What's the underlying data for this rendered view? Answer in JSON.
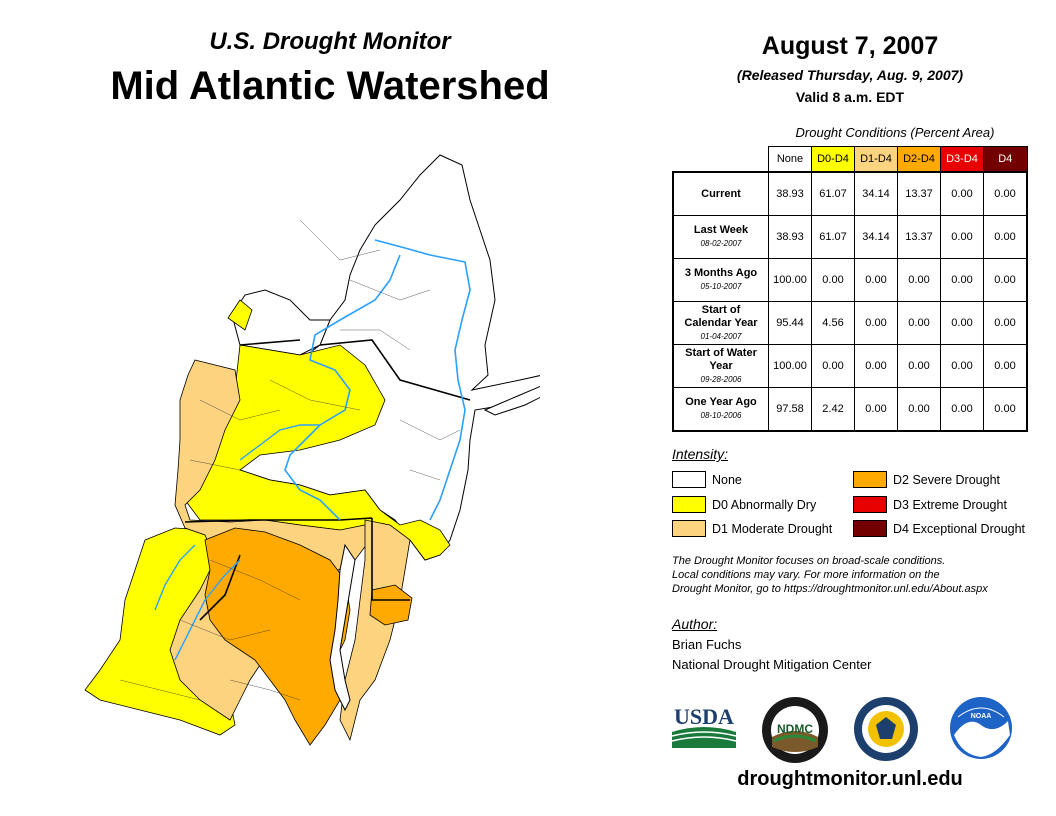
{
  "header": {
    "subtitle": "U.S. Drought Monitor",
    "title": "Mid Atlantic Watershed",
    "date": "August 7, 2007",
    "released": "(Released Thursday, Aug. 9, 2007)",
    "valid": "Valid 8 a.m. EDT"
  },
  "table": {
    "caption": "Drought Conditions (Percent Area)",
    "columns": [
      {
        "label": "None",
        "color": "#ffffff",
        "text_color": "#000000"
      },
      {
        "label": "D0-D4",
        "color": "#ffff00",
        "text_color": "#000000"
      },
      {
        "label": "D1-D4",
        "color": "#fcd37f",
        "text_color": "#000000"
      },
      {
        "label": "D2-D4",
        "color": "#ffaa00",
        "text_color": "#000000"
      },
      {
        "label": "D3-D4",
        "color": "#e60000",
        "text_color": "#ffffff"
      },
      {
        "label": "D4",
        "color": "#730000",
        "text_color": "#ffffff"
      }
    ],
    "rows": [
      {
        "label": "Current",
        "date": "",
        "values": [
          "38.93",
          "61.07",
          "34.14",
          "13.37",
          "0.00",
          "0.00"
        ]
      },
      {
        "label": "Last Week",
        "date": "08-02-2007",
        "values": [
          "38.93",
          "61.07",
          "34.14",
          "13.37",
          "0.00",
          "0.00"
        ]
      },
      {
        "label": "3 Months Ago",
        "date": "05-10-2007",
        "values": [
          "100.00",
          "0.00",
          "0.00",
          "0.00",
          "0.00",
          "0.00"
        ]
      },
      {
        "label": "Start of Calendar Year",
        "date": "01-04-2007",
        "values": [
          "95.44",
          "4.56",
          "0.00",
          "0.00",
          "0.00",
          "0.00"
        ]
      },
      {
        "label": "Start of Water Year",
        "date": "09-28-2006",
        "values": [
          "100.00",
          "0.00",
          "0.00",
          "0.00",
          "0.00",
          "0.00"
        ]
      },
      {
        "label": "One Year Ago",
        "date": "08-10-2006",
        "values": [
          "97.58",
          "2.42",
          "0.00",
          "0.00",
          "0.00",
          "0.00"
        ]
      }
    ]
  },
  "legend": {
    "title": "Intensity:",
    "items": [
      {
        "label": "None",
        "color": "#ffffff"
      },
      {
        "label": "D0 Abnormally Dry",
        "color": "#ffff00"
      },
      {
        "label": "D1 Moderate Drought",
        "color": "#fcd37f"
      },
      {
        "label": "D2 Severe Drought",
        "color": "#ffaa00"
      },
      {
        "label": "D3 Extreme Drought",
        "color": "#e60000"
      },
      {
        "label": "D4 Exceptional Drought",
        "color": "#730000"
      }
    ]
  },
  "note": {
    "line1": "The Drought Monitor focuses on broad-scale conditions.",
    "line2": "Local conditions may vary. For more information on the",
    "line3": "Drought Monitor, go to https://droughtmonitor.unl.edu/About.aspx"
  },
  "author": {
    "title": "Author:",
    "name": "Brian Fuchs",
    "org": "National Drought Mitigation Center"
  },
  "logos": {
    "usda": "USDA",
    "ndmc": "NDMC",
    "noaa": "NOAA"
  },
  "website": "droughtmonitor.unl.edu"
}
